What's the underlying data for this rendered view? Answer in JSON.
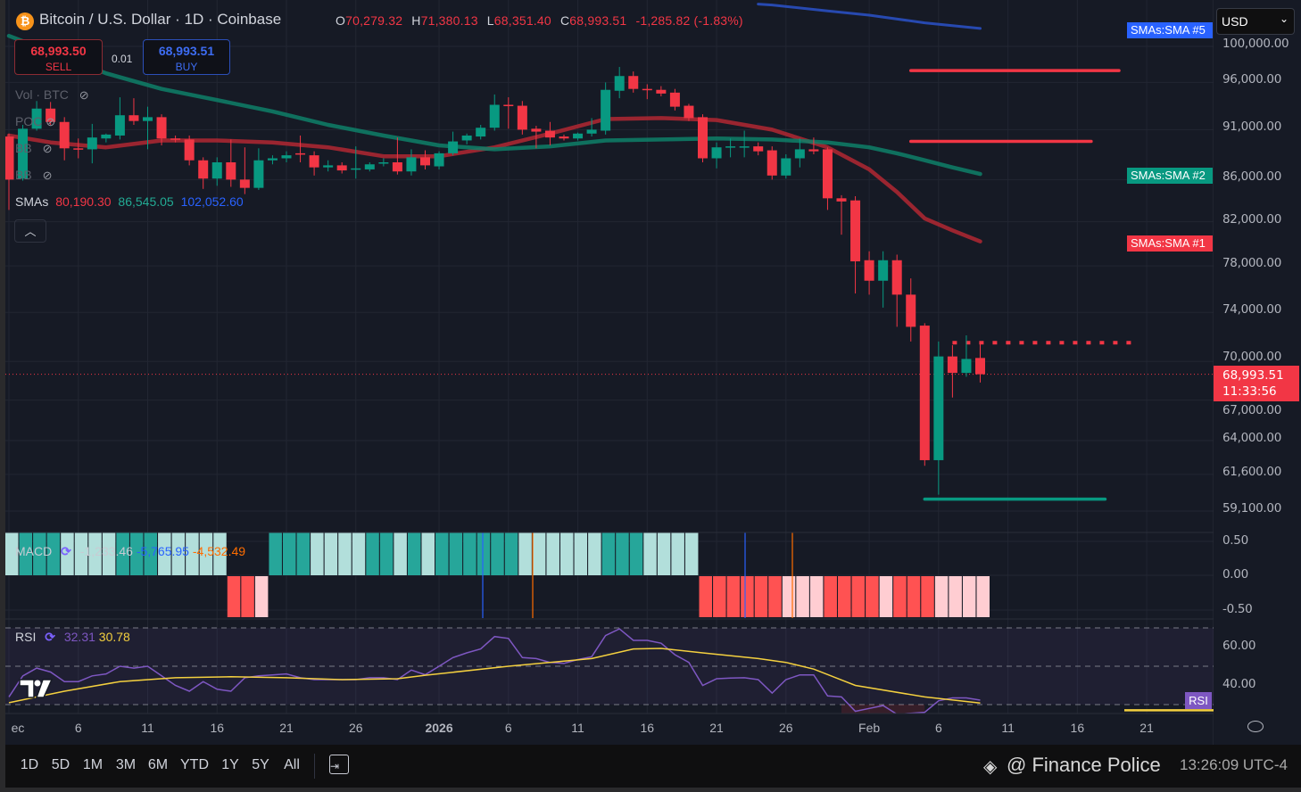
{
  "header": {
    "symbol_icon": "bitcoin-icon",
    "symbol_glyph": "₿",
    "title": "Bitcoin / U.S. Dollar · 1D · Coinbase",
    "o_label": "O",
    "o": "70,279.32",
    "h_label": "H",
    "h": "71,380.13",
    "l_label": "L",
    "l": "68,351.40",
    "c_label": "C",
    "c": "68,993.51",
    "change": "-1,285.82 (-1.83%)"
  },
  "trade": {
    "sell_price": "68,993.50",
    "sell_label": "SELL",
    "spread": "0.01",
    "buy_price": "68,993.51",
    "buy_label": "BUY"
  },
  "legend": {
    "items": [
      {
        "label": "Vol · BTC"
      },
      {
        "label": "POC"
      },
      {
        "label": "BB"
      },
      {
        "label": "BB"
      }
    ],
    "smas_label": "SMAs",
    "sma1": "80,190.30",
    "sma2": "86,545.05",
    "sma5": "102,052.60"
  },
  "currency": "USD",
  "price_axis": [
    "100,000.00",
    "96,000.00",
    "91,000.00",
    "86,000.00",
    "82,000.00",
    "78,000.00",
    "74,000.00",
    "70,000.00",
    "67,000.00",
    "64,000.00",
    "61,600.00",
    "59,100.00"
  ],
  "sma_tags": {
    "sma5": "SMAs:SMA #5",
    "sma2": "SMAs:SMA #2",
    "sma1": "SMAs:SMA #1"
  },
  "last_price": {
    "value": "68,993.51",
    "countdown": "11:33:56"
  },
  "macd": {
    "label": "MACD",
    "hist": "-1,233.46",
    "macd": "-5,765.95",
    "signal": "-4,532.49",
    "axis": [
      "0.50",
      "0.00",
      "-0.50"
    ]
  },
  "rsi": {
    "label": "RSI",
    "value": "32.31",
    "ma": "30.78",
    "axis": [
      "60.00",
      "40.00"
    ],
    "tag": "RSI"
  },
  "time_axis": [
    {
      "label": "ec",
      "date": "2025-12-01"
    },
    {
      "label": "6",
      "date": "2025-12-06"
    },
    {
      "label": "11",
      "date": "2025-12-11"
    },
    {
      "label": "16",
      "date": "2025-12-16"
    },
    {
      "label": "21",
      "date": "2025-12-21"
    },
    {
      "label": "26",
      "date": "2025-12-26"
    },
    {
      "label": "2026",
      "date": "2026-01-01"
    },
    {
      "label": "6",
      "date": "2026-01-06"
    },
    {
      "label": "11",
      "date": "2026-01-11"
    },
    {
      "label": "16",
      "date": "2026-01-16"
    },
    {
      "label": "21",
      "date": "2026-01-21"
    },
    {
      "label": "26",
      "date": "2026-01-26"
    },
    {
      "label": "Feb",
      "date": "2026-02-01"
    },
    {
      "label": "6",
      "date": "2026-02-06"
    },
    {
      "label": "11",
      "date": "2026-02-11"
    },
    {
      "label": "16",
      "date": "2026-02-16"
    },
    {
      "label": "21",
      "date": "2026-02-21"
    }
  ],
  "bottom_bar": {
    "ranges": [
      "1D",
      "5D",
      "1M",
      "3M",
      "6M",
      "YTD",
      "1Y",
      "5Y",
      "All"
    ],
    "timestamp": "13:26:09 UTC-4",
    "watermark": "@ Finance Police"
  },
  "colors": {
    "up": "#089981",
    "down": "#f23645",
    "sma1": "#b22833",
    "sma2": "#0e8068",
    "sma5": "#2a52c9",
    "rsi": "#7e57c2",
    "rsi_ma": "#f4d03f",
    "bg": "#161a25"
  },
  "chart_data": {
    "type": "candlestick",
    "start_date": "2025-12-01",
    "scale": "log",
    "ohlc": [
      [
        90300,
        90600,
        83100,
        86000
      ],
      [
        86100,
        91500,
        85900,
        91100
      ],
      [
        91100,
        94000,
        90900,
        93200
      ],
      [
        93200,
        93900,
        91500,
        91800
      ],
      [
        91800,
        92300,
        87900,
        89100
      ],
      [
        89100,
        90100,
        88100,
        89000
      ],
      [
        89000,
        91600,
        87600,
        90200
      ],
      [
        90100,
        90600,
        89700,
        90500
      ],
      [
        90400,
        94400,
        90000,
        92500
      ],
      [
        92500,
        94300,
        91500,
        91900
      ],
      [
        91900,
        93400,
        89000,
        92300
      ],
      [
        92300,
        92600,
        89400,
        90100
      ],
      [
        90100,
        90400,
        89700,
        90000
      ],
      [
        90000,
        90400,
        87400,
        87900
      ],
      [
        87900,
        88200,
        85100,
        86100
      ],
      [
        86100,
        88200,
        85400,
        87700
      ],
      [
        87700,
        90000,
        85300,
        86000
      ],
      [
        86000,
        89200,
        84600,
        85200
      ],
      [
        85200,
        89100,
        85000,
        87900
      ],
      [
        87900,
        88400,
        87500,
        88100
      ],
      [
        88100,
        88800,
        87700,
        88400
      ],
      [
        88600,
        90400,
        87700,
        88500
      ],
      [
        88400,
        88800,
        86400,
        87200
      ],
      [
        87200,
        87900,
        86800,
        87400
      ],
      [
        87400,
        87700,
        86600,
        86900
      ],
      [
        87000,
        89300,
        86100,
        87100
      ],
      [
        87000,
        87700,
        86800,
        87500
      ],
      [
        87600,
        88100,
        87300,
        87700
      ],
      [
        87700,
        90200,
        86500,
        86800
      ],
      [
        86800,
        89000,
        86400,
        88200
      ],
      [
        88200,
        88900,
        87000,
        87400
      ],
      [
        87300,
        88800,
        87000,
        88600
      ],
      [
        88600,
        90800,
        88400,
        89800
      ],
      [
        89900,
        90600,
        89500,
        90400
      ],
      [
        90300,
        91500,
        90000,
        91200
      ],
      [
        91200,
        94700,
        90900,
        93600
      ],
      [
        93600,
        94400,
        91100,
        93500
      ],
      [
        93500,
        94000,
        90500,
        91000
      ],
      [
        91100,
        91400,
        89100,
        90800
      ],
      [
        90900,
        91800,
        89400,
        90200
      ],
      [
        90300,
        90500,
        89900,
        90100
      ],
      [
        90100,
        90700,
        89900,
        90600
      ],
      [
        90600,
        92200,
        90300,
        91000
      ],
      [
        90900,
        96000,
        90500,
        95200
      ],
      [
        95100,
        97700,
        94300,
        96700
      ],
      [
        96700,
        97200,
        94900,
        95300
      ],
      [
        95300,
        95800,
        94200,
        95200
      ],
      [
        95200,
        95600,
        94500,
        94800
      ],
      [
        94900,
        95300,
        93000,
        93400
      ],
      [
        93500,
        93700,
        91900,
        92200
      ],
      [
        92300,
        92600,
        87700,
        88100
      ],
      [
        88100,
        89700,
        87100,
        89200
      ],
      [
        89200,
        90100,
        88200,
        89300
      ],
      [
        89200,
        90900,
        88200,
        89300
      ],
      [
        89300,
        89700,
        88400,
        88800
      ],
      [
        88900,
        89300,
        86000,
        86400
      ],
      [
        86400,
        88500,
        86100,
        88100
      ],
      [
        88100,
        90100,
        87200,
        89000
      ],
      [
        89000,
        90200,
        88500,
        88800
      ],
      [
        89000,
        89200,
        83100,
        84200
      ],
      [
        84200,
        84500,
        80800,
        83900
      ],
      [
        84000,
        84400,
        75600,
        78400
      ],
      [
        78500,
        79300,
        75500,
        76700
      ],
      [
        76700,
        79300,
        74400,
        78500
      ],
      [
        78500,
        79000,
        72800,
        75500
      ],
      [
        75500,
        76900,
        71600,
        72800
      ],
      [
        72900,
        73100,
        62200,
        62600
      ],
      [
        62600,
        71600,
        60200,
        70400
      ],
      [
        70400,
        71300,
        67200,
        69100
      ],
      [
        69100,
        72100,
        68800,
        70200
      ],
      [
        70279.32,
        71380.13,
        68351.4,
        68993.51
      ]
    ],
    "smas": [
      {
        "name": "SMA #1",
        "color_key": "sma1",
        "points": [
          [
            "2025-12-01",
            90400
          ],
          [
            "2025-12-04",
            89700
          ],
          [
            "2025-12-08",
            89200
          ],
          [
            "2025-12-12",
            89900
          ],
          [
            "2025-12-16",
            89900
          ],
          [
            "2025-12-20",
            89700
          ],
          [
            "2025-12-24",
            89200
          ],
          [
            "2025-12-28",
            88300
          ],
          [
            "2026-01-01",
            88300
          ],
          [
            "2026-01-05",
            89200
          ],
          [
            "2026-01-09",
            90600
          ],
          [
            "2026-01-13",
            92100
          ],
          [
            "2026-01-17",
            92200
          ],
          [
            "2026-01-21",
            92000
          ],
          [
            "2026-01-25",
            91000
          ],
          [
            "2026-01-29",
            89200
          ],
          [
            "2026-02-01",
            87000
          ],
          [
            "2026-02-03",
            84800
          ],
          [
            "2026-02-05",
            82300
          ],
          [
            "2026-02-07",
            81200
          ],
          [
            "2026-02-09",
            80190.3
          ]
        ]
      },
      {
        "name": "SMA #2",
        "color_key": "sma2",
        "points": [
          [
            "2025-12-01",
            101200
          ],
          [
            "2025-12-04",
            99400
          ],
          [
            "2025-12-08",
            97000
          ],
          [
            "2025-12-12",
            95300
          ],
          [
            "2025-12-16",
            94100
          ],
          [
            "2025-12-20",
            92900
          ],
          [
            "2025-12-24",
            91500
          ],
          [
            "2025-12-28",
            90400
          ],
          [
            "2026-01-01",
            89400
          ],
          [
            "2026-01-05",
            89000
          ],
          [
            "2026-01-09",
            89300
          ],
          [
            "2026-01-13",
            89900
          ],
          [
            "2026-01-17",
            90000
          ],
          [
            "2026-01-21",
            90100
          ],
          [
            "2026-01-25",
            90000
          ],
          [
            "2026-01-29",
            89700
          ],
          [
            "2026-02-01",
            89200
          ],
          [
            "2026-02-03",
            88600
          ],
          [
            "2026-02-05",
            87900
          ],
          [
            "2026-02-07",
            87200
          ],
          [
            "2026-02-09",
            86545.05
          ]
        ]
      },
      {
        "name": "SMA #5",
        "color_key": "sma5",
        "points": [
          [
            "2026-01-24",
            104900
          ],
          [
            "2026-01-25",
            104800
          ],
          [
            "2026-01-29",
            104100
          ],
          [
            "2026-02-01",
            103600
          ],
          [
            "2026-02-05",
            102700
          ],
          [
            "2026-02-09",
            102052.6
          ]
        ]
      }
    ],
    "hlines": [
      {
        "price": 97300,
        "from": "2026-02-04",
        "to": "2026-02-19",
        "color_key": "down",
        "style": "solid"
      },
      {
        "price": 89800,
        "from": "2026-02-04",
        "to": "2026-02-17",
        "color_key": "down",
        "style": "solid"
      },
      {
        "price": 71500,
        "from": "2026-02-07",
        "to": "2026-02-20",
        "color_key": "down",
        "style": "dotted"
      },
      {
        "price": 59900,
        "from": "2026-02-05",
        "to": "2026-02-18",
        "color_key": "up",
        "style": "solid"
      }
    ],
    "macd_histogram_states": "LDDDLLLLDDDLLLLLRRPDDDLLLLDDLDLDDDDDDLLLLLLDDDLLLLRRRRRRPPPRRRRPRRRPPPP",
    "macd_state_colors": {
      "D": "#26a69a",
      "L": "#b2dfdb",
      "R": "#ff5252",
      "P": "#ffcdd2"
    },
    "macd_range": [
      -0.5,
      0.5
    ],
    "rsi_values": [
      34,
      45,
      49,
      47,
      42,
      42,
      45,
      46,
      50,
      49,
      50,
      45,
      40,
      37,
      42,
      38,
      37,
      44,
      45,
      45.5,
      46,
      44,
      43,
      43,
      43,
      43,
      44,
      44,
      43,
      48,
      45.6,
      50,
      54.5,
      57,
      59,
      65.5,
      64.5,
      54.5,
      54,
      52,
      51.5,
      53.5,
      55,
      66,
      69.5,
      63.5,
      63.5,
      62,
      56,
      52,
      40,
      43.5,
      43.8,
      44,
      43,
      36,
      43,
      45.5,
      45.5,
      34.5,
      34,
      26.5,
      28,
      29.5,
      25,
      25.5,
      26,
      32,
      33.5,
      33.5,
      32.31
    ],
    "rsi_ma_points": [
      [
        "2025-12-01",
        31
      ],
      [
        "2025-12-05",
        37
      ],
      [
        "2025-12-09",
        42
      ],
      [
        "2025-12-13",
        44
      ],
      [
        "2025-12-17",
        44.5
      ],
      [
        "2025-12-21",
        44
      ],
      [
        "2025-12-25",
        43
      ],
      [
        "2025-12-29",
        43.5
      ],
      [
        "2025-12-31",
        45.3
      ],
      [
        "2026-01-06",
        50
      ],
      [
        "2026-01-12",
        54
      ],
      [
        "2026-01-15",
        59
      ],
      [
        "2026-01-17",
        59.3
      ],
      [
        "2026-01-20",
        57
      ],
      [
        "2026-01-24",
        54
      ],
      [
        "2026-01-26",
        52
      ],
      [
        "2026-01-28",
        48.5
      ],
      [
        "2026-01-31",
        40
      ],
      [
        "2026-02-05",
        34
      ],
      [
        "2026-02-09",
        30.78
      ]
    ],
    "rsi_levels": [
      70,
      50,
      30
    ]
  }
}
